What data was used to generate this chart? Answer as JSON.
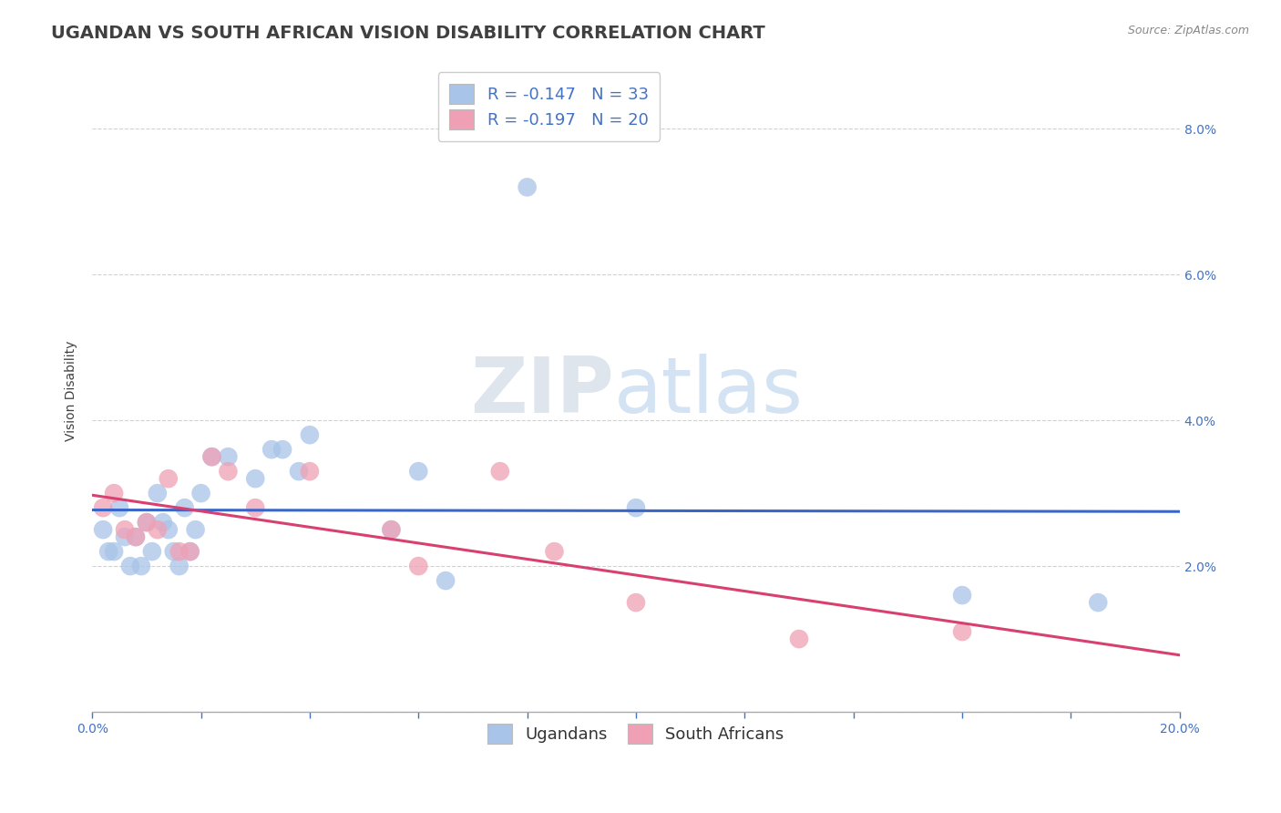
{
  "title": "UGANDAN VS SOUTH AFRICAN VISION DISABILITY CORRELATION CHART",
  "source": "Source: ZipAtlas.com",
  "xlabel": "",
  "ylabel": "Vision Disability",
  "xlim": [
    0.0,
    0.2
  ],
  "ylim": [
    0.0,
    0.088
  ],
  "xticks": [
    0.0,
    0.02,
    0.04,
    0.06,
    0.08,
    0.1,
    0.12,
    0.14,
    0.16,
    0.18,
    0.2
  ],
  "xtick_labels_show": [
    "0.0%",
    "",
    "",
    "",
    "",
    "",
    "",
    "",
    "",
    "",
    "20.0%"
  ],
  "yticks": [
    0.0,
    0.02,
    0.04,
    0.06,
    0.08
  ],
  "ytick_labels": [
    "",
    "2.0%",
    "4.0%",
    "6.0%",
    "8.0%"
  ],
  "ugandan_x": [
    0.002,
    0.003,
    0.004,
    0.005,
    0.006,
    0.007,
    0.008,
    0.009,
    0.01,
    0.011,
    0.012,
    0.013,
    0.014,
    0.015,
    0.016,
    0.017,
    0.018,
    0.019,
    0.02,
    0.022,
    0.025,
    0.03,
    0.033,
    0.035,
    0.038,
    0.04,
    0.055,
    0.06,
    0.065,
    0.08,
    0.1,
    0.16,
    0.185
  ],
  "ugandan_y": [
    0.025,
    0.022,
    0.022,
    0.028,
    0.024,
    0.02,
    0.024,
    0.02,
    0.026,
    0.022,
    0.03,
    0.026,
    0.025,
    0.022,
    0.02,
    0.028,
    0.022,
    0.025,
    0.03,
    0.035,
    0.035,
    0.032,
    0.036,
    0.036,
    0.033,
    0.038,
    0.025,
    0.033,
    0.018,
    0.072,
    0.028,
    0.016,
    0.015
  ],
  "sa_x": [
    0.002,
    0.004,
    0.006,
    0.008,
    0.01,
    0.012,
    0.014,
    0.016,
    0.018,
    0.022,
    0.025,
    0.03,
    0.04,
    0.055,
    0.06,
    0.075,
    0.085,
    0.1,
    0.13,
    0.16
  ],
  "sa_y": [
    0.028,
    0.03,
    0.025,
    0.024,
    0.026,
    0.025,
    0.032,
    0.022,
    0.022,
    0.035,
    0.033,
    0.028,
    0.033,
    0.025,
    0.02,
    0.033,
    0.022,
    0.015,
    0.01,
    0.011
  ],
  "ugandan_color": "#a8c4e8",
  "sa_color": "#f0a0b4",
  "ugandan_line_color": "#3a66c8",
  "sa_line_color": "#d84070",
  "ugandan_R": -0.147,
  "ugandan_N": 33,
  "sa_R": -0.197,
  "sa_N": 20,
  "legend_label_ugandan": "Ugandans",
  "legend_label_sa": "South Africans",
  "watermark_zip": "ZIP",
  "watermark_atlas": "atlas",
  "background_color": "#ffffff",
  "grid_color": "#cccccc",
  "axis_color": "#4472c4",
  "title_color": "#404040",
  "title_fontsize": 14,
  "label_fontsize": 10,
  "tick_fontsize": 10,
  "legend_fontsize": 13
}
